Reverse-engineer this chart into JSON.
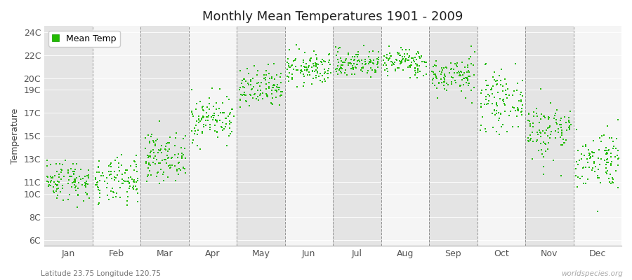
{
  "title": "Monthly Mean Temperatures 1901 - 2009",
  "ylabel": "Temperature",
  "subtitle": "Latitude 23.75 Longitude 120.75",
  "watermark": "worldspecies.org",
  "dot_color": "#22bb00",
  "bg_color": "#efefef",
  "band_colors": [
    "#e4e4e4",
    "#f5f5f5"
  ],
  "yticks": [
    6,
    8,
    10,
    11,
    13,
    15,
    17,
    19,
    20,
    22,
    24
  ],
  "ytick_labels": [
    "6C",
    "8C",
    "10C",
    "11C",
    "13C",
    "15C",
    "17C",
    "19C",
    "20C",
    "22C",
    "24C"
  ],
  "months": [
    "Jan",
    "Feb",
    "Mar",
    "Apr",
    "May",
    "Jun",
    "Jul",
    "Aug",
    "Sep",
    "Oct",
    "Nov",
    "Dec"
  ],
  "month_means": [
    11.2,
    11.0,
    13.2,
    16.5,
    19.0,
    20.8,
    21.3,
    21.4,
    20.2,
    18.0,
    15.5,
    13.0
  ],
  "month_stds": [
    0.9,
    1.0,
    1.0,
    1.0,
    0.9,
    0.7,
    0.6,
    0.6,
    0.8,
    1.2,
    1.3,
    1.3
  ],
  "ylim": [
    5.5,
    24.5
  ],
  "n_years": 109,
  "random_seed": 42,
  "dot_size": 4,
  "title_fontsize": 13,
  "axis_fontsize": 9,
  "legend_fontsize": 9
}
